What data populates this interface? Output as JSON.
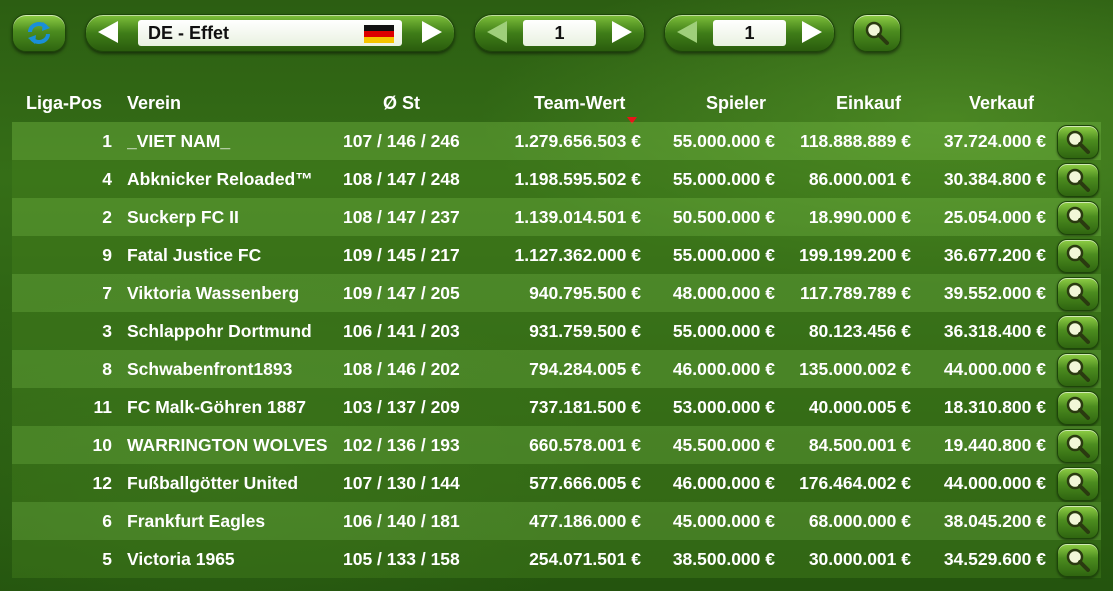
{
  "toolbar": {
    "league_label": "DE - Effet",
    "page_left_value": "1",
    "page_right_value": "1",
    "icons": {
      "refresh": "refresh-icon",
      "search": "magnifier-icon",
      "flag": "germany-flag-icon",
      "prev": "arrow-left-icon",
      "next": "arrow-right-icon"
    }
  },
  "table": {
    "headers": {
      "pos": "Liga-Pos",
      "name": "Verein",
      "st": "Ø St",
      "wert": "Team-Wert",
      "spieler": "Spieler",
      "einkauf": "Einkauf",
      "verkauf": "Verkauf"
    },
    "sort_column": "Team-Wert",
    "rows": [
      {
        "pos": "1",
        "name": "_VIET NAM_",
        "st": "107 / 146 / 246",
        "wert": "1.279.656.503 €",
        "spieler": "55.000.000 €",
        "einkauf": "118.888.889 €",
        "verkauf": "37.724.000 €"
      },
      {
        "pos": "4",
        "name": "Abknicker Reloaded™",
        "st": "108 / 147 / 248",
        "wert": "1.198.595.502 €",
        "spieler": "55.000.000 €",
        "einkauf": "86.000.001 €",
        "verkauf": "30.384.800 €"
      },
      {
        "pos": "2",
        "name": "Suckerp FC II",
        "st": "108 / 147 / 237",
        "wert": "1.139.014.501 €",
        "spieler": "50.500.000 €",
        "einkauf": "18.990.000 €",
        "verkauf": "25.054.000 €"
      },
      {
        "pos": "9",
        "name": "Fatal Justice FC",
        "st": "109 / 145 / 217",
        "wert": "1.127.362.000 €",
        "spieler": "55.000.000 €",
        "einkauf": "199.199.200 €",
        "verkauf": "36.677.200 €"
      },
      {
        "pos": "7",
        "name": "Viktoria Wassenberg",
        "st": "109 / 147 / 205",
        "wert": "940.795.500 €",
        "spieler": "48.000.000 €",
        "einkauf": "117.789.789 €",
        "verkauf": "39.552.000 €"
      },
      {
        "pos": "3",
        "name": "Schlappohr Dortmund",
        "st": "106 / 141 / 203",
        "wert": "931.759.500 €",
        "spieler": "55.000.000 €",
        "einkauf": "80.123.456 €",
        "verkauf": "36.318.400 €"
      },
      {
        "pos": "8",
        "name": "Schwabenfront1893",
        "st": "108 / 146 / 202",
        "wert": "794.284.005 €",
        "spieler": "46.000.000 €",
        "einkauf": "135.000.002 €",
        "verkauf": "44.000.000 €"
      },
      {
        "pos": "11",
        "name": "FC Malk-Göhren 1887",
        "st": "103 / 137 / 209",
        "wert": "737.181.500 €",
        "spieler": "53.000.000 €",
        "einkauf": "40.000.005 €",
        "verkauf": "18.310.800 €"
      },
      {
        "pos": "10",
        "name": "WARRINGTON WOLVES",
        "st": "102 / 136 / 193",
        "wert": "660.578.001 €",
        "spieler": "45.500.000 €",
        "einkauf": "84.500.001 €",
        "verkauf": "19.440.800 €"
      },
      {
        "pos": "12",
        "name": "Fußballgötter United",
        "st": "107 / 130 / 144",
        "wert": "577.666.005 €",
        "spieler": "46.000.000 €",
        "einkauf": "176.464.002 €",
        "verkauf": "44.000.000 €"
      },
      {
        "pos": "6",
        "name": "Frankfurt Eagles",
        "st": "106 / 140 / 181",
        "wert": "477.186.000 €",
        "spieler": "45.000.000 €",
        "einkauf": "68.000.000 €",
        "verkauf": "38.045.200 €"
      },
      {
        "pos": "5",
        "name": "Victoria 1965",
        "st": "105 / 133 / 158",
        "wert": "254.071.501 €",
        "spieler": "38.500.000 €",
        "einkauf": "30.000.001 €",
        "verkauf": "34.529.600 €"
      }
    ]
  },
  "colors": {
    "background": "#2d6213",
    "sort_marker": "#e8141a",
    "button_green": "#4c8c1f"
  }
}
